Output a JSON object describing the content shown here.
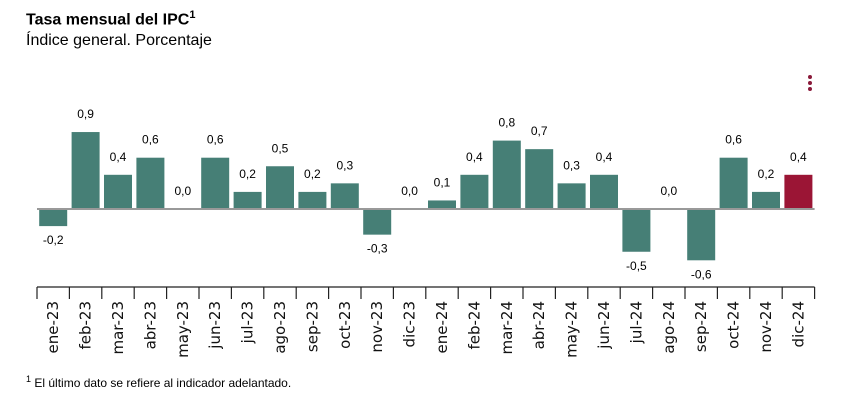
{
  "chart_data": {
    "type": "bar",
    "title": "Tasa mensual del IPC",
    "title_superscript": "1",
    "subtitle": "Índice general. Porcentaje",
    "categories": [
      "ene-23",
      "feb-23",
      "mar-23",
      "abr-23",
      "may-23",
      "jun-23",
      "jul-23",
      "ago-23",
      "sep-23",
      "oct-23",
      "nov-23",
      "dic-23",
      "ene-24",
      "feb-24",
      "mar-24",
      "abr-24",
      "may-24",
      "jun-24",
      "jul-24",
      "ago-24",
      "sep-24",
      "oct-24",
      "nov-24",
      "dic-24"
    ],
    "values": [
      -0.2,
      0.9,
      0.4,
      0.6,
      0.0,
      0.6,
      0.2,
      0.5,
      0.2,
      0.3,
      -0.3,
      0.0,
      0.1,
      0.4,
      0.8,
      0.7,
      0.3,
      0.4,
      -0.5,
      0.0,
      -0.6,
      0.6,
      0.2,
      0.4
    ],
    "data_labels": [
      "-0,2",
      "0,9",
      "0,4",
      "0,6",
      "0,0",
      "0,6",
      "0,2",
      "0,5",
      "0,2",
      "0,3",
      "-0,3",
      "0,0",
      "0,1",
      "0,4",
      "0,8",
      "0,7",
      "0,3",
      "0,4",
      "-0,5",
      "0,0",
      "-0,6",
      "0,6",
      "0,2",
      "0,4"
    ],
    "highlighted_category": "dic-24",
    "colors": {
      "bar": "#467f76",
      "highlight": "#9b1535",
      "zero_line": "#999999"
    },
    "grid": false,
    "legend": "none",
    "footnote_marker": "1",
    "footnote": "El último dato se refiere al indicador adelantado."
  },
  "menu_icon": "kebab-menu-icon"
}
